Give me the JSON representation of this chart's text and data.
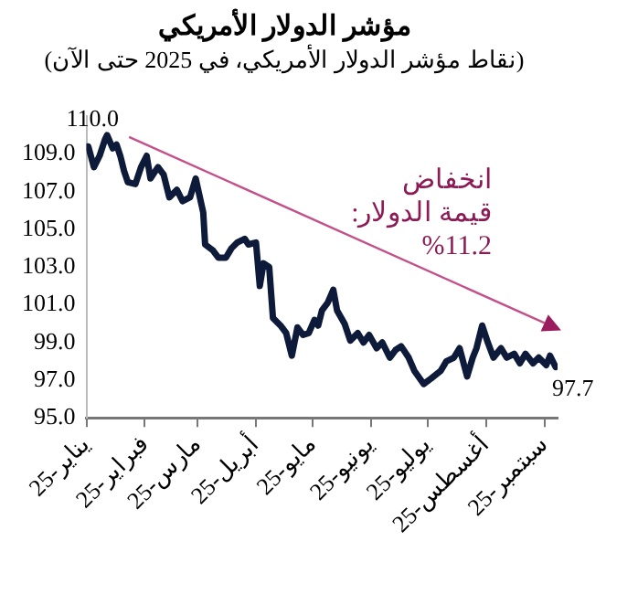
{
  "chart_data": {
    "type": "line",
    "title": "مؤشر الدولار الأمريكي",
    "subtitle": "(نقاط مؤشر الدولار الأمريكي، في 2025 حتى الآن)",
    "x": [
      "2025-01-02",
      "2025-01-05",
      "2025-01-08",
      "2025-01-11",
      "2025-01-12",
      "2025-01-15",
      "2025-01-17",
      "2025-01-19",
      "2025-01-21",
      "2025-01-23",
      "2025-01-27",
      "2025-01-30",
      "2025-02-02",
      "2025-02-04",
      "2025-02-08",
      "2025-02-11",
      "2025-02-14",
      "2025-02-18",
      "2025-02-21",
      "2025-02-25",
      "2025-02-28",
      "2025-03-04",
      "2025-03-05",
      "2025-03-09",
      "2025-03-12",
      "2025-03-16",
      "2025-03-19",
      "2025-03-22",
      "2025-03-26",
      "2025-03-28",
      "2025-04-01",
      "2025-04-03",
      "2025-04-05",
      "2025-04-08",
      "2025-04-10",
      "2025-04-14",
      "2025-04-17",
      "2025-04-20",
      "2025-04-23",
      "2025-04-26",
      "2025-04-29",
      "2025-05-02",
      "2025-05-04",
      "2025-05-06",
      "2025-05-09",
      "2025-05-12",
      "2025-05-14",
      "2025-05-18",
      "2025-05-21",
      "2025-05-25",
      "2025-05-28",
      "2025-05-31",
      "2025-06-04",
      "2025-06-07",
      "2025-06-11",
      "2025-06-14",
      "2025-06-17",
      "2025-06-21",
      "2025-06-24",
      "2025-06-29",
      "2025-07-03",
      "2025-07-08",
      "2025-07-11",
      "2025-07-15",
      "2025-07-18",
      "2025-07-22",
      "2025-07-25",
      "2025-07-27",
      "2025-07-30",
      "2025-08-02",
      "2025-08-05",
      "2025-08-09",
      "2025-08-12",
      "2025-08-16",
      "2025-08-19",
      "2025-08-22",
      "2025-08-26",
      "2025-08-29",
      "2025-09-02",
      "2025-09-04",
      "2025-09-07"
    ],
    "values": [
      109.4,
      108.3,
      108.9,
      109.8,
      110.0,
      109.3,
      109.5,
      108.9,
      108.1,
      107.5,
      107.4,
      108.3,
      108.9,
      107.7,
      108.3,
      107.9,
      106.7,
      107.1,
      106.5,
      106.7,
      107.7,
      105.9,
      104.2,
      103.9,
      103.5,
      103.5,
      104.0,
      104.3,
      104.5,
      104.2,
      104.3,
      102.0,
      103.2,
      103.0,
      100.3,
      99.9,
      99.5,
      98.3,
      99.8,
      99.4,
      99.5,
      100.2,
      99.9,
      100.7,
      101.1,
      101.8,
      100.7,
      100.0,
      99.1,
      99.5,
      99.0,
      99.4,
      98.7,
      99.0,
      98.2,
      98.6,
      98.8,
      98.2,
      97.5,
      96.8,
      97.1,
      97.5,
      98.0,
      98.2,
      98.7,
      97.2,
      98.2,
      98.7,
      99.9,
      99.0,
      98.2,
      98.7,
      98.2,
      98.4,
      97.9,
      98.4,
      97.9,
      98.2,
      97.8,
      98.3,
      97.7
    ],
    "color": "#0d1a3a",
    "marker": "none",
    "grid": false,
    "legend": false,
    "xlim": [
      "2025-01-01",
      "2025-09-08"
    ],
    "xticks": [
      {
        "value": "2025-01-01",
        "label": "يناير-25"
      },
      {
        "value": "2025-02-01",
        "label": "فبراير-25"
      },
      {
        "value": "2025-03-01",
        "label": "مارس-25"
      },
      {
        "value": "2025-04-01",
        "label": "أبريل-25"
      },
      {
        "value": "2025-05-01",
        "label": "مايو-25"
      },
      {
        "value": "2025-06-01",
        "label": "يونيو-25"
      },
      {
        "value": "2025-07-01",
        "label": "يوليو-25"
      },
      {
        "value": "2025-08-01",
        "label": "أغسطس-25"
      },
      {
        "value": "2025-09-01",
        "label": "سبتمبر-25"
      }
    ],
    "ylim": [
      95,
      111
    ],
    "yticks": [
      {
        "value": 95,
        "label": "95.0"
      },
      {
        "value": 97,
        "label": "97.0"
      },
      {
        "value": 99,
        "label": "99.0"
      },
      {
        "value": 101,
        "label": "101.0"
      },
      {
        "value": 103,
        "label": "103.0"
      },
      {
        "value": 105,
        "label": "105.0"
      },
      {
        "value": 107,
        "label": "107.0"
      },
      {
        "value": 109,
        "label": "109.0"
      }
    ],
    "annotations": [
      {
        "text": "110.0",
        "x": "2025-01-12",
        "y": 110.0
      },
      {
        "text": "97.7",
        "x": "2025-09-07",
        "y": 97.7
      },
      "انخفاض\nقيمة الدولار:\n%11.2"
    ]
  }
}
